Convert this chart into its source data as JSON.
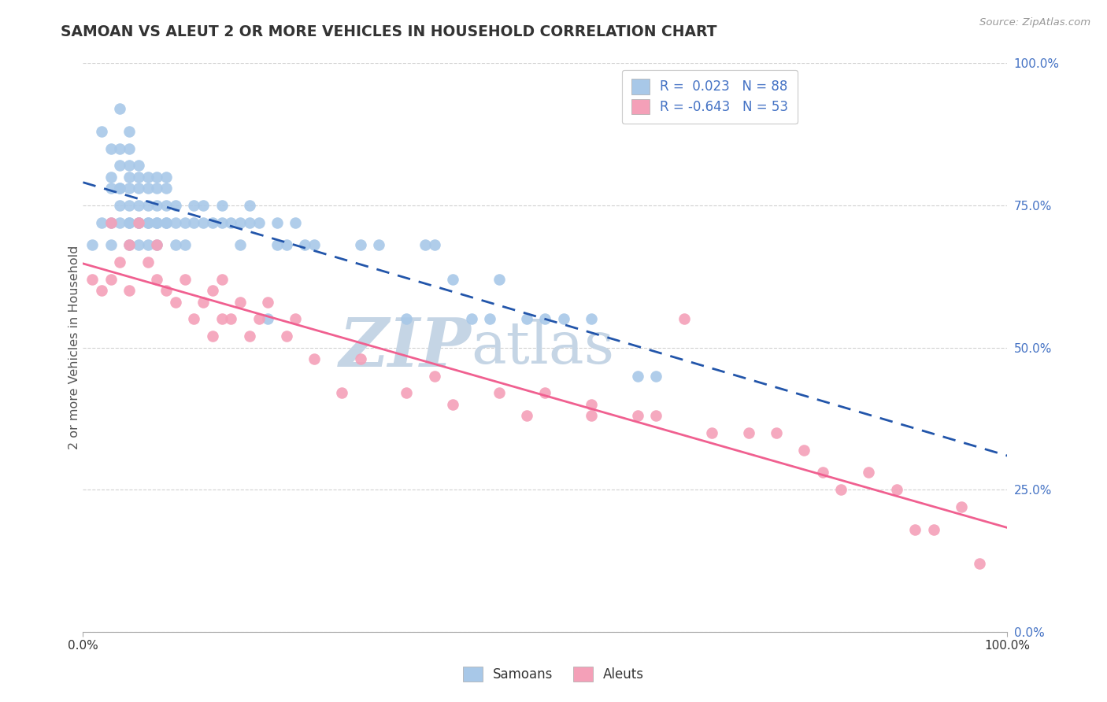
{
  "title": "SAMOAN VS ALEUT 2 OR MORE VEHICLES IN HOUSEHOLD CORRELATION CHART",
  "source_text": "Source: ZipAtlas.com",
  "ylabel": "2 or more Vehicles in Household",
  "ytick_labels": [
    "0.0%",
    "25.0%",
    "50.0%",
    "75.0%",
    "100.0%"
  ],
  "ytick_values": [
    0.0,
    0.25,
    0.5,
    0.75,
    1.0
  ],
  "legend_label1": "Samoans",
  "legend_label2": "Aleuts",
  "R1": 0.023,
  "N1": 88,
  "R2": -0.643,
  "N2": 53,
  "color_samoan": "#a8c8e8",
  "color_aleut": "#f4a0b8",
  "color_samoan_line": "#2255aa",
  "color_aleut_line": "#f06090",
  "color_legend_text": "#4472c4",
  "watermark_zip_color": "#c8d8e8",
  "watermark_atlas_color": "#c8d8e8",
  "background_color": "#ffffff",
  "grid_color": "#cccccc",
  "samoan_x": [
    0.01,
    0.02,
    0.02,
    0.03,
    0.03,
    0.03,
    0.03,
    0.03,
    0.04,
    0.04,
    0.04,
    0.04,
    0.04,
    0.04,
    0.04,
    0.05,
    0.05,
    0.05,
    0.05,
    0.05,
    0.05,
    0.05,
    0.05,
    0.05,
    0.06,
    0.06,
    0.06,
    0.06,
    0.06,
    0.06,
    0.06,
    0.07,
    0.07,
    0.07,
    0.07,
    0.07,
    0.07,
    0.08,
    0.08,
    0.08,
    0.08,
    0.08,
    0.08,
    0.09,
    0.09,
    0.09,
    0.09,
    0.09,
    0.1,
    0.1,
    0.1,
    0.11,
    0.11,
    0.12,
    0.12,
    0.13,
    0.13,
    0.14,
    0.15,
    0.15,
    0.16,
    0.17,
    0.17,
    0.18,
    0.18,
    0.19,
    0.2,
    0.21,
    0.21,
    0.22,
    0.23,
    0.24,
    0.25,
    0.3,
    0.32,
    0.35,
    0.37,
    0.38,
    0.4,
    0.42,
    0.44,
    0.45,
    0.48,
    0.5,
    0.52,
    0.55,
    0.6,
    0.62
  ],
  "samoan_y": [
    0.68,
    0.88,
    0.72,
    0.78,
    0.8,
    0.85,
    0.72,
    0.68,
    0.75,
    0.78,
    0.82,
    0.85,
    0.92,
    0.78,
    0.72,
    0.72,
    0.75,
    0.78,
    0.8,
    0.82,
    0.85,
    0.88,
    0.72,
    0.68,
    0.72,
    0.75,
    0.78,
    0.8,
    0.82,
    0.72,
    0.68,
    0.72,
    0.75,
    0.78,
    0.8,
    0.72,
    0.68,
    0.72,
    0.75,
    0.78,
    0.8,
    0.72,
    0.68,
    0.72,
    0.75,
    0.78,
    0.8,
    0.72,
    0.72,
    0.75,
    0.68,
    0.72,
    0.68,
    0.72,
    0.75,
    0.72,
    0.75,
    0.72,
    0.72,
    0.75,
    0.72,
    0.72,
    0.68,
    0.72,
    0.75,
    0.72,
    0.55,
    0.68,
    0.72,
    0.68,
    0.72,
    0.68,
    0.68,
    0.68,
    0.68,
    0.55,
    0.68,
    0.68,
    0.62,
    0.55,
    0.55,
    0.62,
    0.55,
    0.55,
    0.55,
    0.55,
    0.45,
    0.45
  ],
  "aleut_x": [
    0.01,
    0.02,
    0.03,
    0.03,
    0.04,
    0.05,
    0.05,
    0.06,
    0.07,
    0.08,
    0.08,
    0.09,
    0.1,
    0.11,
    0.12,
    0.13,
    0.14,
    0.14,
    0.15,
    0.15,
    0.16,
    0.17,
    0.18,
    0.19,
    0.2,
    0.22,
    0.23,
    0.25,
    0.28,
    0.3,
    0.35,
    0.38,
    0.4,
    0.45,
    0.48,
    0.5,
    0.55,
    0.55,
    0.6,
    0.62,
    0.65,
    0.68,
    0.72,
    0.75,
    0.78,
    0.8,
    0.82,
    0.85,
    0.88,
    0.9,
    0.92,
    0.95,
    0.97
  ],
  "aleut_y": [
    0.62,
    0.6,
    0.72,
    0.62,
    0.65,
    0.68,
    0.6,
    0.72,
    0.65,
    0.68,
    0.62,
    0.6,
    0.58,
    0.62,
    0.55,
    0.58,
    0.52,
    0.6,
    0.62,
    0.55,
    0.55,
    0.58,
    0.52,
    0.55,
    0.58,
    0.52,
    0.55,
    0.48,
    0.42,
    0.48,
    0.42,
    0.45,
    0.4,
    0.42,
    0.38,
    0.42,
    0.38,
    0.4,
    0.38,
    0.38,
    0.55,
    0.35,
    0.35,
    0.35,
    0.32,
    0.28,
    0.25,
    0.28,
    0.25,
    0.18,
    0.18,
    0.22,
    0.12
  ]
}
